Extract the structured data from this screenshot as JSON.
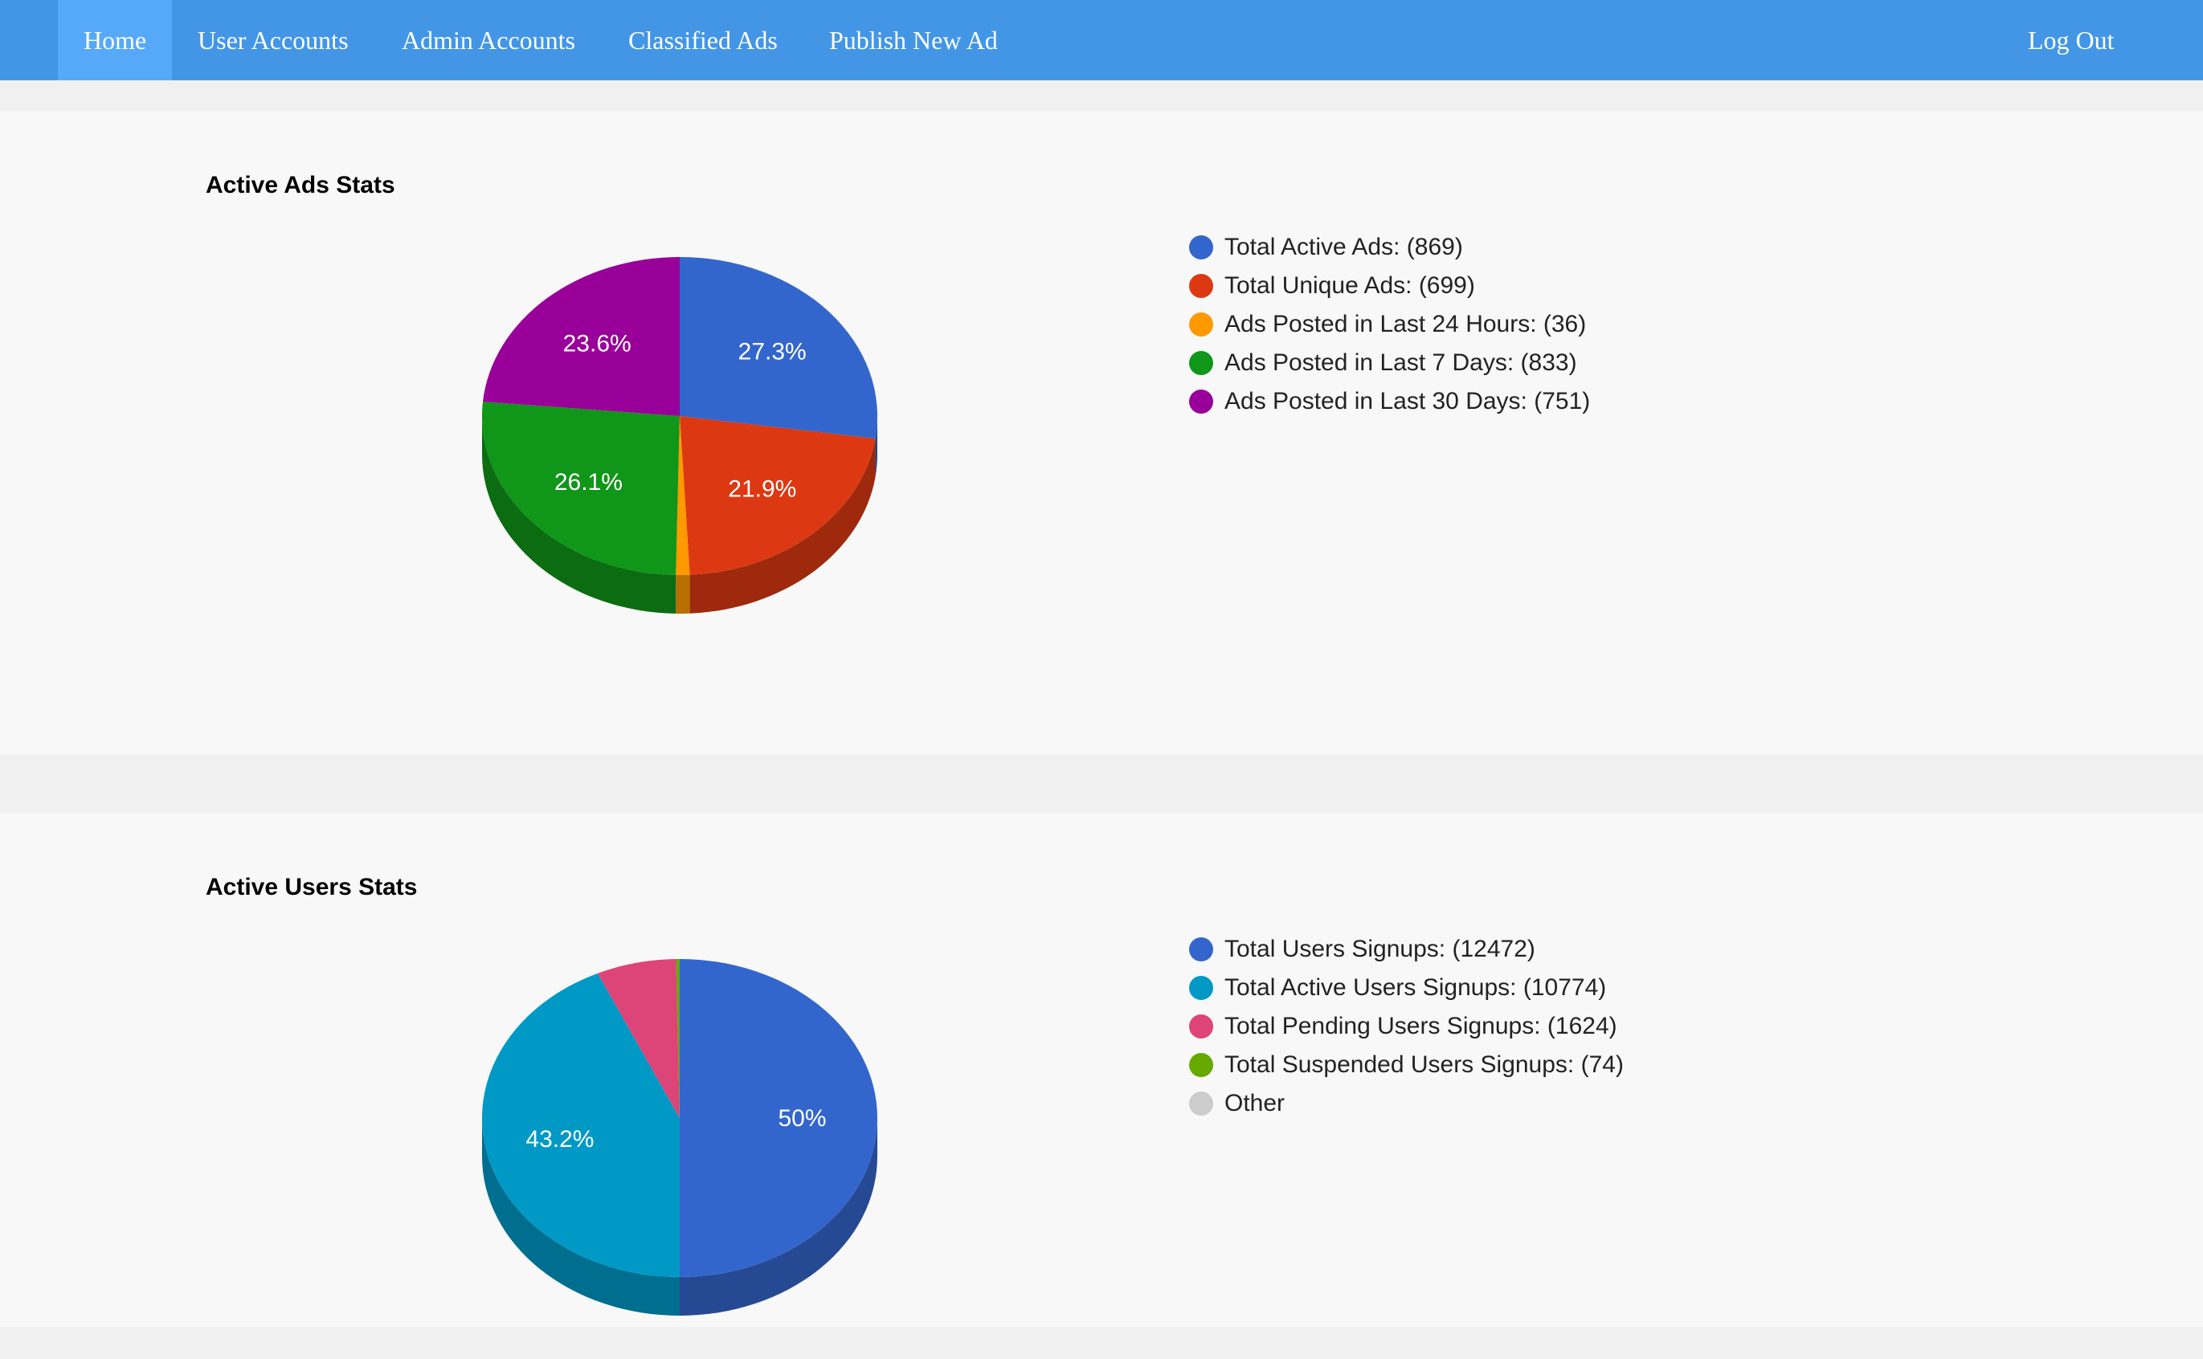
{
  "nav": {
    "items": [
      {
        "label": "Home",
        "active": true
      },
      {
        "label": "User Accounts",
        "active": false
      },
      {
        "label": "Admin Accounts",
        "active": false
      },
      {
        "label": "Classified Ads",
        "active": false
      },
      {
        "label": "Publish New Ad",
        "active": false
      }
    ],
    "logout_label": "Log Out"
  },
  "colors": {
    "navbar": "#4396e6",
    "nav_active": "#56a9f8",
    "panel_bg": "#f8f8f8",
    "page_bg": "#f0f0f0"
  },
  "ads_panel": {
    "title": "Active Ads Stats",
    "legend": [
      {
        "label": "Total Active Ads: (869)",
        "color": "#3366cc"
      },
      {
        "label": "Total Unique Ads: (699)",
        "color": "#dc3912"
      },
      {
        "label": "Ads Posted in Last 24 Hours: (36)",
        "color": "#ff9900"
      },
      {
        "label": "Ads Posted in Last 7 Days: (833)",
        "color": "#109618"
      },
      {
        "label": "Ads Posted in Last 30 Days: (751)",
        "color": "#990099"
      }
    ]
  },
  "users_panel": {
    "title": "Active Users Stats",
    "legend": [
      {
        "label": "Total Users Signups: (12472)",
        "color": "#3366cc"
      },
      {
        "label": "Total Active Users Signups: (10774)",
        "color": "#0099c6"
      },
      {
        "label": "Total Pending Users Signups: (1624)",
        "color": "#dd4477"
      },
      {
        "label": "Total Suspended Users Signups: (74)",
        "color": "#66aa00"
      },
      {
        "label": "Other",
        "color": "#cccccc"
      }
    ]
  },
  "chart_data": [
    {
      "type": "pie",
      "title": "Active Ads Stats",
      "style": "3d",
      "slices": [
        {
          "name": "Total Active Ads",
          "value": 869,
          "label": "27.3%",
          "color": "#3366cc"
        },
        {
          "name": "Total Unique Ads",
          "value": 699,
          "label": "21.9%",
          "color": "#dc3912"
        },
        {
          "name": "Ads Posted in Last 24 Hours",
          "value": 36,
          "label": "",
          "color": "#ff9900"
        },
        {
          "name": "Ads Posted in Last 7 Days",
          "value": 833,
          "label": "26.1%",
          "color": "#109618"
        },
        {
          "name": "Ads Posted in Last 30 Days",
          "value": 751,
          "label": "23.6%",
          "color": "#990099"
        }
      ],
      "legend_position": "right"
    },
    {
      "type": "pie",
      "title": "Active Users Stats",
      "style": "3d",
      "slices": [
        {
          "name": "Total Users Signups",
          "value": 12472,
          "label": "50%",
          "color": "#3366cc"
        },
        {
          "name": "Total Active Users Signups",
          "value": 10774,
          "label": "43.2%",
          "color": "#0099c6"
        },
        {
          "name": "Total Pending Users Signups",
          "value": 1624,
          "label": "",
          "color": "#dd4477"
        },
        {
          "name": "Total Suspended Users Signups",
          "value": 74,
          "label": "",
          "color": "#66aa00"
        },
        {
          "name": "Other",
          "value": 0,
          "label": "",
          "color": "#cccccc"
        }
      ],
      "legend_position": "right"
    }
  ]
}
